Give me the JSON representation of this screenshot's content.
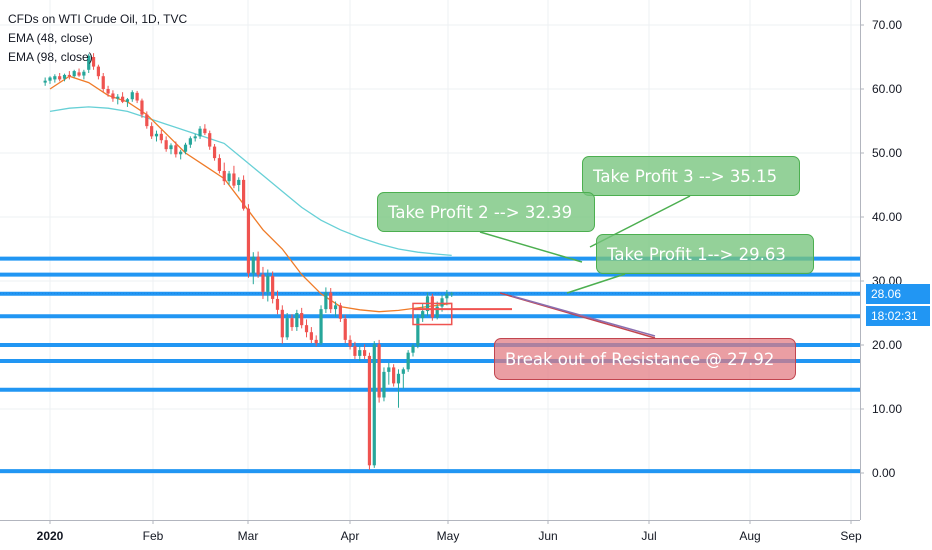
{
  "title": "CFDs on WTI Crude Oil, 1D, TVC",
  "indicators": [
    "EMA (48, close)",
    "EMA (98, close)"
  ],
  "colors": {
    "support_line": "#2196f3",
    "ema48": "#ef7b28",
    "ema98": "#67d0d6",
    "candle_up": "#26a69a",
    "candle_down": "#ef5350",
    "label_green": "#76c47c",
    "label_red": "#e27880",
    "price_badge": "#2196f3"
  },
  "price_badge": {
    "value": "28.06",
    "countdown": "18:02:31"
  },
  "annotations": [
    {
      "id": "tp3",
      "text": "Take Profit 3 --> 35.15",
      "tone": "green",
      "price": 35.15
    },
    {
      "id": "tp2",
      "text": "Take Profit 2 --> 32.39",
      "tone": "green",
      "price": 32.39
    },
    {
      "id": "tp1",
      "text": "Take Profit 1-->  29.63",
      "tone": "green",
      "price": 29.63
    },
    {
      "id": "breakout",
      "text": "Break out of Resistance @ 27.92",
      "tone": "red",
      "price": 27.92
    }
  ],
  "chart_data": {
    "type": "candlestick",
    "title": "CFDs on WTI Crude Oil, 1D, TVC",
    "x_tick_labels": [
      "2020",
      "Feb",
      "Mar",
      "Apr",
      "May",
      "Jun",
      "Jul",
      "Aug",
      "Sep"
    ],
    "y_tick_labels": [
      "0.00",
      "10.00",
      "20.00",
      "30.00",
      "40.00",
      "50.00",
      "60.00",
      "70.00"
    ],
    "ylim": [
      -7,
      76
    ],
    "horizontal_levels": [
      33.5,
      31.0,
      28.0,
      24.5,
      20.0,
      17.5,
      13.0,
      0.3
    ],
    "ema48_points": [
      [
        0,
        60
      ],
      [
        8,
        62
      ],
      [
        16,
        61
      ],
      [
        24,
        59
      ],
      [
        32,
        58
      ],
      [
        40,
        56
      ],
      [
        48,
        53
      ],
      [
        56,
        50
      ],
      [
        64,
        48
      ],
      [
        72,
        46
      ],
      [
        80,
        42
      ],
      [
        88,
        38
      ],
      [
        96,
        35
      ],
      [
        104,
        31
      ],
      [
        112,
        28
      ],
      [
        120,
        26
      ],
      [
        128,
        25.5
      ],
      [
        136,
        25.2
      ],
      [
        144,
        25.4
      ],
      [
        152,
        25.8
      ],
      [
        160,
        26.2
      ],
      [
        166,
        26.5
      ]
    ],
    "ema98_points": [
      [
        0,
        56.5
      ],
      [
        8,
        57
      ],
      [
        16,
        57.2
      ],
      [
        24,
        57
      ],
      [
        32,
        56.5
      ],
      [
        40,
        55.5
      ],
      [
        48,
        54.5
      ],
      [
        56,
        53.5
      ],
      [
        64,
        52.5
      ],
      [
        72,
        51.5
      ],
      [
        80,
        49
      ],
      [
        88,
        46.5
      ],
      [
        96,
        44
      ],
      [
        104,
        41.5
      ],
      [
        112,
        39.5
      ],
      [
        120,
        38
      ],
      [
        128,
        36.8
      ],
      [
        136,
        35.8
      ],
      [
        144,
        35
      ],
      [
        152,
        34.5
      ],
      [
        160,
        34.2
      ],
      [
        166,
        34
      ]
    ],
    "candles": [
      [
        -2,
        61,
        61.8,
        60.5,
        61.3
      ],
      [
        0,
        61.3,
        62,
        60.8,
        61.8
      ],
      [
        2,
        61.5,
        62.3,
        61,
        62
      ],
      [
        4,
        62,
        62.5,
        61.2,
        61.5
      ],
      [
        6,
        61.6,
        62.4,
        61.2,
        62.2
      ],
      [
        8,
        62.2,
        62.8,
        61.5,
        62
      ],
      [
        10,
        62,
        63,
        61.8,
        62.8
      ],
      [
        12,
        62.6,
        63.2,
        61.9,
        62.1
      ],
      [
        14,
        62.1,
        63,
        61.5,
        62.7
      ],
      [
        16,
        63,
        65.5,
        62.5,
        65.2
      ],
      [
        18,
        65,
        65.6,
        63,
        63.5
      ],
      [
        20,
        63.5,
        63.8,
        61.5,
        62
      ],
      [
        22,
        62,
        62.5,
        59.5,
        60
      ],
      [
        24,
        60,
        60.5,
        58.8,
        59.3
      ],
      [
        26,
        59.3,
        59.8,
        58,
        58.5
      ],
      [
        28,
        58.5,
        59.2,
        57.6,
        58.8
      ],
      [
        30,
        58.8,
        59.5,
        57.8,
        58
      ],
      [
        32,
        58,
        58.6,
        57.2,
        58.4
      ],
      [
        34,
        58.4,
        59.8,
        58,
        59.5
      ],
      [
        36,
        59.4,
        59.7,
        57.8,
        58.2
      ],
      [
        38,
        58.2,
        58.5,
        55.5,
        56
      ],
      [
        40,
        56,
        56.5,
        53.8,
        54.2
      ],
      [
        42,
        54.2,
        54.8,
        52.2,
        52.6
      ],
      [
        44,
        52.6,
        53.5,
        51.8,
        53
      ],
      [
        46,
        53,
        53.6,
        51.5,
        52
      ],
      [
        48,
        52,
        52.6,
        50.2,
        50.6
      ],
      [
        50,
        50.6,
        51.5,
        49.8,
        51.2
      ],
      [
        52,
        51.2,
        51.8,
        49.3,
        49.8
      ],
      [
        54,
        49.8,
        50.5,
        49,
        50.2
      ],
      [
        56,
        50.2,
        51.6,
        49.8,
        51.3
      ],
      [
        58,
        51.3,
        52.6,
        50.8,
        52.3
      ],
      [
        60,
        52.3,
        53,
        51.8,
        52.6
      ],
      [
        62,
        52.6,
        54.2,
        52.2,
        53.8
      ],
      [
        64,
        53.8,
        54.5,
        52.8,
        53.1
      ],
      [
        66,
        53.1,
        53.5,
        50.5,
        51
      ],
      [
        68,
        51,
        51.4,
        48.8,
        49.2
      ],
      [
        70,
        49.2,
        49.8,
        46.8,
        47.2
      ],
      [
        72,
        47.2,
        48.5,
        45,
        45.6
      ],
      [
        74,
        45.6,
        47.2,
        45,
        46.8
      ],
      [
        76,
        46.8,
        48,
        44.5,
        44.9
      ],
      [
        78,
        45,
        46.2,
        44,
        45.8
      ],
      [
        80,
        45.8,
        46.5,
        41,
        41.3
      ],
      [
        82,
        41.3,
        42,
        30.5,
        31.2
      ],
      [
        84,
        31.2,
        34.5,
        29.5,
        33.8
      ],
      [
        86,
        33.8,
        34.6,
        30.5,
        31
      ],
      [
        88,
        31,
        32.2,
        27.2,
        28.3
      ],
      [
        90,
        28.3,
        31.8,
        26.8,
        30.8
      ],
      [
        92,
        30.8,
        31.5,
        26.5,
        27.2
      ],
      [
        94,
        27.2,
        28.5,
        24.8,
        25.5
      ],
      [
        96,
        25.5,
        26.2,
        20.2,
        21.2
      ],
      [
        98,
        21.2,
        25,
        20.8,
        24.2
      ],
      [
        100,
        24.2,
        24.8,
        22.2,
        22.8
      ],
      [
        102,
        22.8,
        25.5,
        22.2,
        25
      ],
      [
        104,
        25,
        25.8,
        22.6,
        23.1
      ],
      [
        106,
        23.1,
        24,
        21.2,
        22
      ],
      [
        108,
        22,
        22.8,
        20.3,
        20.8
      ],
      [
        110,
        20.8,
        21.5,
        19.8,
        20.3
      ],
      [
        112,
        20.3,
        26.2,
        20,
        25.6
      ],
      [
        114,
        25.6,
        29,
        25,
        28.2
      ],
      [
        116,
        28.2,
        28.9,
        25,
        25.6
      ],
      [
        118,
        25.6,
        26.8,
        24.4,
        26.2
      ],
      [
        120,
        26.2,
        26.6,
        23.6,
        24.1
      ],
      [
        122,
        24.1,
        24.7,
        20.3,
        20.8
      ],
      [
        124,
        20.8,
        21.5,
        19.3,
        19.8
      ],
      [
        126,
        19.8,
        20.5,
        17.8,
        18.3
      ],
      [
        128,
        18.3,
        19.8,
        17.5,
        19.2
      ],
      [
        130,
        19.2,
        20.1,
        17.8,
        18.3
      ],
      [
        132,
        18.3,
        18.8,
        0.5,
        1.2
      ],
      [
        134,
        1.2,
        20.6,
        0.8,
        20.1
      ],
      [
        136,
        20.1,
        20.8,
        11,
        11.8
      ],
      [
        138,
        11.8,
        16.5,
        11.2,
        15.8
      ],
      [
        140,
        15.8,
        17.2,
        13.8,
        16.5
      ],
      [
        142,
        16.5,
        17,
        13.5,
        14
      ],
      [
        144,
        14,
        16.2,
        10.2,
        15.5
      ],
      [
        146,
        15.5,
        16.5,
        13.2,
        16.2
      ],
      [
        148,
        16.2,
        19.2,
        15.8,
        18.8
      ],
      [
        150,
        18.8,
        20.2,
        18.2,
        19.9
      ],
      [
        152,
        19.9,
        24.8,
        19.5,
        24.2
      ],
      [
        154,
        24.2,
        26.5,
        23.6,
        25.3
      ],
      [
        156,
        25.3,
        28.2,
        24.5,
        27.6
      ],
      [
        158,
        27.6,
        28,
        23.8,
        24.3
      ],
      [
        160,
        24.3,
        26.8,
        24,
        26
      ],
      [
        162,
        26,
        27.8,
        25.2,
        27.3
      ],
      [
        164,
        27.3,
        28.6,
        26.2,
        28
      ],
      [
        166,
        27.9,
        28.3,
        27.5,
        28.06
      ]
    ]
  }
}
